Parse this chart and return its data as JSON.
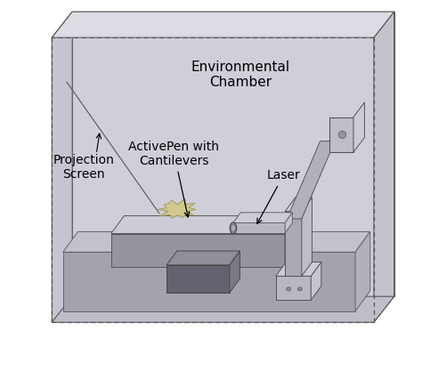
{
  "bg_color": "#ffffff",
  "chamber_edge": "#555555",
  "wall_back_color": "#d4d4dc",
  "wall_left_color": "#c8c8d2",
  "wall_right_color": "#c4c4cc",
  "floor_color": "#c0c0c8",
  "ceil_color": "#dcdce4",
  "glass_color": "#b8b8cc",
  "glass_alpha": 0.15,
  "base_plate_top": "#c8c8d0",
  "base_plate_side": "#a0a0a8",
  "base_plate_front": "#b0b0b8",
  "table_top_color": "#c8c8d0",
  "table_side_color": "#909098",
  "table_front_color": "#a8a8b0",
  "stem_front": "#606068",
  "stem_side": "#707078",
  "stem_top": "#888890",
  "laser_tube_color": "#c0c0c8",
  "laser_lens_color": "#a0a0a8",
  "arm_color": "#a8a8b0",
  "mount_color": "#b8b8c0",
  "bracket_color": "#b0b0b8",
  "pen_color": "#c8c870",
  "pen_edge": "#909040",
  "annotation_color": "#000000",
  "label_env": "Environmental\nChamber",
  "label_proj": "Projection\nScreen",
  "label_active": "ActivePen with\nCantilevers",
  "label_laser": "Laser",
  "fontsize": 10,
  "dpi": 100,
  "figw": 4.74,
  "figh": 4.17
}
